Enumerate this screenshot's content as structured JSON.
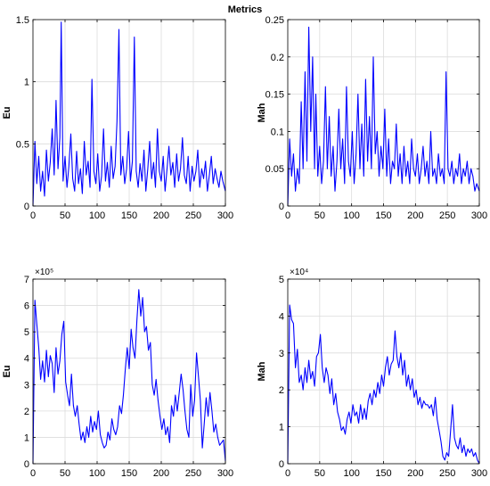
{
  "figure_title": "Metrics",
  "chart_data": [
    {
      "type": "line",
      "ylabel": "Eu",
      "xlim": [
        0,
        300
      ],
      "ylim": [
        0,
        1.5
      ],
      "xticks": [
        0,
        50,
        100,
        150,
        200,
        250,
        300
      ],
      "xtick_labels": [
        "0",
        "50",
        "100",
        "150",
        "200",
        "250",
        "300"
      ],
      "yticks": [
        0,
        0.5,
        1,
        1.5
      ],
      "ytick_labels": [
        "0",
        "0.5",
        "1",
        "1.5"
      ],
      "exponent_label": "",
      "grid": true,
      "series": [
        {
          "color": "#0000ff",
          "x": [
            0,
            3,
            6,
            9,
            12,
            15,
            18,
            21,
            24,
            27,
            30,
            33,
            36,
            39,
            42,
            44,
            47,
            50,
            53,
            56,
            59,
            62,
            65,
            68,
            71,
            74,
            77,
            80,
            83,
            86,
            89,
            92,
            95,
            98,
            101,
            104,
            107,
            110,
            113,
            116,
            119,
            122,
            125,
            128,
            131,
            134,
            137,
            140,
            143,
            146,
            149,
            152,
            155,
            158,
            161,
            164,
            167,
            170,
            173,
            176,
            179,
            182,
            185,
            188,
            191,
            194,
            197,
            200,
            203,
            206,
            209,
            212,
            215,
            218,
            221,
            224,
            227,
            230,
            233,
            236,
            239,
            242,
            245,
            248,
            251,
            254,
            257,
            260,
            263,
            266,
            269,
            272,
            275,
            278,
            281,
            284,
            287,
            290,
            293,
            296,
            300
          ],
          "y": [
            0.0,
            0.52,
            0.18,
            0.4,
            0.12,
            0.28,
            0.08,
            0.45,
            0.2,
            0.35,
            0.62,
            0.25,
            0.85,
            0.3,
            0.55,
            1.48,
            0.2,
            0.4,
            0.15,
            0.32,
            0.58,
            0.22,
            0.12,
            0.44,
            0.18,
            0.3,
            0.1,
            0.52,
            0.25,
            0.36,
            0.15,
            1.02,
            0.28,
            0.18,
            0.42,
            0.12,
            0.24,
            0.62,
            0.2,
            0.35,
            0.15,
            0.48,
            0.22,
            0.32,
            0.68,
            1.42,
            0.25,
            0.4,
            0.18,
            0.3,
            0.6,
            0.2,
            0.36,
            1.36,
            0.28,
            0.15,
            0.34,
            0.2,
            0.45,
            0.12,
            0.3,
            0.52,
            0.22,
            0.35,
            0.15,
            0.62,
            0.28,
            0.2,
            0.4,
            0.12,
            0.3,
            0.48,
            0.25,
            0.35,
            0.15,
            0.42,
            0.2,
            0.3,
            0.55,
            0.25,
            0.18,
            0.4,
            0.12,
            0.32,
            0.2,
            0.28,
            0.45,
            0.15,
            0.3,
            0.22,
            0.36,
            0.12,
            0.25,
            0.4,
            0.18,
            0.3,
            0.22,
            0.15,
            0.28,
            0.2,
            0.12
          ]
        }
      ]
    },
    {
      "type": "line",
      "ylabel": "Mah",
      "xlim": [
        0,
        300
      ],
      "ylim": [
        0,
        0.25
      ],
      "xticks": [
        0,
        50,
        100,
        150,
        200,
        250,
        300
      ],
      "xtick_labels": [
        "0",
        "50",
        "100",
        "150",
        "200",
        "250",
        "300"
      ],
      "yticks": [
        0,
        0.05,
        0.1,
        0.15,
        0.2,
        0.25
      ],
      "ytick_labels": [
        "0",
        "0.05",
        "0.1",
        "0.15",
        "0.2",
        "0.25"
      ],
      "exponent_label": "",
      "grid": true,
      "series": [
        {
          "color": "#0000ff",
          "x": [
            0,
            3,
            6,
            9,
            12,
            15,
            18,
            21,
            24,
            27,
            30,
            33,
            36,
            39,
            42,
            44,
            47,
            50,
            53,
            56,
            59,
            62,
            65,
            68,
            71,
            74,
            77,
            80,
            83,
            86,
            89,
            92,
            95,
            98,
            101,
            104,
            107,
            110,
            113,
            116,
            119,
            122,
            125,
            128,
            131,
            134,
            137,
            140,
            143,
            146,
            149,
            152,
            155,
            158,
            161,
            164,
            167,
            170,
            173,
            176,
            179,
            182,
            185,
            188,
            191,
            194,
            197,
            200,
            203,
            206,
            209,
            212,
            215,
            218,
            221,
            224,
            227,
            230,
            233,
            236,
            239,
            242,
            245,
            248,
            251,
            254,
            257,
            260,
            263,
            266,
            269,
            272,
            275,
            278,
            281,
            284,
            287,
            290,
            293,
            296,
            300
          ],
          "y": [
            0.0,
            0.09,
            0.04,
            0.07,
            0.02,
            0.05,
            0.03,
            0.14,
            0.05,
            0.18,
            0.06,
            0.24,
            0.1,
            0.2,
            0.05,
            0.15,
            0.04,
            0.08,
            0.03,
            0.06,
            0.16,
            0.05,
            0.12,
            0.04,
            0.08,
            0.02,
            0.06,
            0.13,
            0.05,
            0.09,
            0.03,
            0.16,
            0.06,
            0.04,
            0.1,
            0.03,
            0.07,
            0.15,
            0.05,
            0.11,
            0.04,
            0.17,
            0.06,
            0.12,
            0.05,
            0.2,
            0.07,
            0.1,
            0.04,
            0.08,
            0.05,
            0.13,
            0.04,
            0.09,
            0.03,
            0.06,
            0.05,
            0.11,
            0.04,
            0.07,
            0.03,
            0.08,
            0.04,
            0.06,
            0.03,
            0.09,
            0.05,
            0.04,
            0.07,
            0.03,
            0.05,
            0.08,
            0.04,
            0.06,
            0.03,
            0.1,
            0.04,
            0.05,
            0.03,
            0.07,
            0.04,
            0.05,
            0.03,
            0.18,
            0.05,
            0.04,
            0.06,
            0.03,
            0.05,
            0.04,
            0.07,
            0.03,
            0.05,
            0.04,
            0.06,
            0.03,
            0.05,
            0.04,
            0.02,
            0.03,
            0.02
          ]
        }
      ]
    },
    {
      "type": "line",
      "ylabel": "Eu",
      "xlim": [
        0,
        300
      ],
      "ylim": [
        0,
        7
      ],
      "xticks": [
        0,
        50,
        100,
        150,
        200,
        250,
        300
      ],
      "xtick_labels": [
        "0",
        "50",
        "100",
        "150",
        "200",
        "250",
        "300"
      ],
      "yticks": [
        0,
        1,
        2,
        3,
        4,
        5,
        6,
        7
      ],
      "ytick_labels": [
        "0",
        "1",
        "2",
        "3",
        "4",
        "5",
        "6",
        "7"
      ],
      "exponent_label": "×10⁵",
      "grid": true,
      "series": [
        {
          "color": "#0000ff",
          "x": [
            0,
            3,
            6,
            9,
            12,
            15,
            18,
            21,
            24,
            27,
            30,
            33,
            36,
            39,
            42,
            45,
            48,
            51,
            54,
            57,
            60,
            63,
            66,
            69,
            72,
            75,
            78,
            81,
            84,
            87,
            90,
            93,
            96,
            99,
            102,
            105,
            108,
            111,
            114,
            117,
            120,
            123,
            126,
            129,
            132,
            135,
            138,
            141,
            144,
            147,
            150,
            153,
            156,
            159,
            162,
            165,
            168,
            171,
            174,
            177,
            180,
            183,
            186,
            189,
            192,
            195,
            198,
            201,
            204,
            207,
            210,
            213,
            216,
            219,
            222,
            225,
            228,
            231,
            234,
            237,
            240,
            243,
            246,
            249,
            252,
            255,
            258,
            261,
            264,
            267,
            270,
            273,
            276,
            279,
            282,
            285,
            288,
            291,
            294,
            297,
            300
          ],
          "y": [
            0.0,
            6.2,
            5.3,
            4.4,
            3.2,
            3.9,
            3.1,
            4.3,
            3.3,
            4.1,
            3.8,
            2.7,
            4.4,
            3.4,
            3.9,
            4.9,
            5.4,
            3.1,
            2.6,
            2.2,
            3.4,
            2.2,
            1.8,
            2.2,
            1.5,
            0.9,
            1.2,
            0.8,
            1.4,
            1.0,
            1.8,
            1.2,
            1.6,
            1.3,
            2.0,
            1.1,
            0.8,
            0.6,
            0.7,
            1.2,
            0.9,
            1.7,
            1.3,
            1.1,
            1.4,
            2.2,
            1.9,
            2.6,
            3.6,
            4.4,
            3.6,
            5.1,
            4.4,
            4.0,
            5.4,
            6.6,
            5.6,
            6.3,
            5.0,
            5.2,
            4.3,
            4.6,
            3.0,
            2.6,
            3.2,
            2.4,
            1.8,
            1.3,
            1.7,
            1.1,
            1.4,
            0.8,
            2.2,
            1.8,
            2.6,
            2.0,
            2.7,
            3.4,
            2.8,
            2.0,
            1.3,
            1.0,
            3.0,
            1.8,
            2.4,
            4.2,
            3.3,
            2.4,
            0.6,
            1.5,
            2.5,
            1.8,
            2.7,
            2.0,
            1.2,
            1.5,
            1.0,
            0.7,
            0.8,
            0.9,
            0.1
          ]
        }
      ]
    },
    {
      "type": "line",
      "ylabel": "Mah",
      "xlim": [
        0,
        300
      ],
      "ylim": [
        0,
        5
      ],
      "xticks": [
        0,
        50,
        100,
        150,
        200,
        250,
        300
      ],
      "xtick_labels": [
        "0",
        "50",
        "100",
        "150",
        "200",
        "250",
        "300"
      ],
      "yticks": [
        0,
        1,
        2,
        3,
        4,
        5
      ],
      "ytick_labels": [
        "0",
        "1",
        "2",
        "3",
        "4",
        "5"
      ],
      "exponent_label": "×10⁴",
      "grid": true,
      "series": [
        {
          "color": "#0000ff",
          "x": [
            0,
            3,
            6,
            9,
            12,
            15,
            18,
            21,
            24,
            27,
            30,
            33,
            36,
            39,
            42,
            45,
            48,
            51,
            54,
            57,
            60,
            63,
            66,
            69,
            72,
            75,
            78,
            81,
            84,
            87,
            90,
            93,
            96,
            99,
            102,
            105,
            108,
            111,
            114,
            117,
            120,
            123,
            126,
            129,
            132,
            135,
            138,
            141,
            144,
            147,
            150,
            153,
            156,
            159,
            162,
            165,
            168,
            171,
            174,
            177,
            180,
            183,
            186,
            189,
            192,
            195,
            198,
            201,
            204,
            207,
            210,
            213,
            216,
            219,
            222,
            225,
            228,
            231,
            234,
            237,
            240,
            243,
            246,
            249,
            252,
            255,
            258,
            261,
            264,
            267,
            270,
            273,
            276,
            279,
            282,
            285,
            288,
            291,
            294,
            297,
            300
          ],
          "y": [
            0.0,
            4.3,
            3.9,
            3.8,
            2.6,
            3.1,
            2.2,
            2.4,
            2.0,
            2.6,
            2.2,
            2.8,
            2.3,
            2.5,
            2.1,
            2.9,
            3.0,
            3.5,
            2.6,
            2.2,
            2.6,
            2.4,
            1.9,
            2.3,
            1.6,
            1.9,
            1.4,
            1.2,
            0.9,
            1.0,
            0.8,
            1.2,
            1.4,
            1.1,
            1.6,
            1.3,
            1.4,
            1.1,
            1.6,
            1.2,
            1.5,
            1.2,
            1.7,
            1.9,
            1.6,
            2.0,
            1.8,
            2.2,
            1.9,
            2.4,
            2.1,
            2.6,
            2.9,
            2.4,
            2.7,
            2.8,
            3.6,
            2.9,
            2.6,
            3.0,
            2.4,
            2.8,
            2.1,
            2.4,
            2.0,
            2.3,
            1.8,
            2.0,
            1.6,
            1.8,
            1.5,
            1.7,
            1.6,
            1.6,
            1.5,
            1.6,
            1.3,
            1.8,
            1.2,
            0.9,
            0.6,
            0.2,
            0.1,
            0.3,
            0.2,
            0.9,
            1.6,
            0.7,
            0.5,
            0.4,
            0.7,
            0.3,
            0.5,
            0.2,
            0.4,
            0.3,
            0.4,
            0.2,
            0.3,
            0.1,
            0.0
          ]
        }
      ]
    }
  ]
}
